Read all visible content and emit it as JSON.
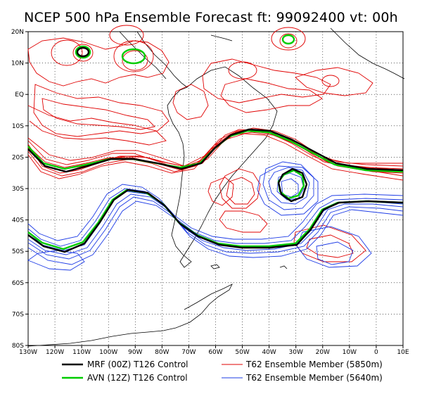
{
  "title": "NCEP 500 hPa Ensemble Forecast  ft: 99092400 vt: 00h",
  "axes": {
    "lat_labels": [
      "20N",
      "10N",
      "EQ",
      "10S",
      "20S",
      "30S",
      "40S",
      "50S",
      "60S",
      "70S",
      "80S"
    ],
    "lat_values": [
      20,
      10,
      0,
      -10,
      -20,
      -30,
      -40,
      -50,
      -60,
      -70,
      -80
    ],
    "lon_labels": [
      "130W",
      "120W",
      "110W",
      "100W",
      "90W",
      "80W",
      "70W",
      "60W",
      "50W",
      "40W",
      "30W",
      "20W",
      "10W",
      "0",
      "10E"
    ],
    "lon_values": [
      -130,
      -120,
      -110,
      -100,
      -90,
      -80,
      -70,
      -60,
      -50,
      -40,
      -30,
      -20,
      -10,
      0,
      10
    ],
    "lon_range": [
      -130,
      10
    ],
    "lat_range": [
      -80,
      20
    ],
    "grid": "dotted"
  },
  "legend": [
    {
      "label": "MRF (00Z) T126 Control",
      "color": "#000000",
      "width": 2.5
    },
    {
      "label": "AVN (12Z) T126 Control",
      "color": "#00cc00",
      "width": 2.5
    },
    {
      "label": "T62 Ensemble Member (5850m)",
      "color": "#e00000",
      "width": 1
    },
    {
      "label": "T62 Ensemble Member (5640m)",
      "color": "#1e3ce6",
      "width": 1
    }
  ],
  "colors": {
    "mrf": "#000000",
    "avn": "#00cc00",
    "red": "#e00000",
    "blue": "#1e3ce6"
  }
}
